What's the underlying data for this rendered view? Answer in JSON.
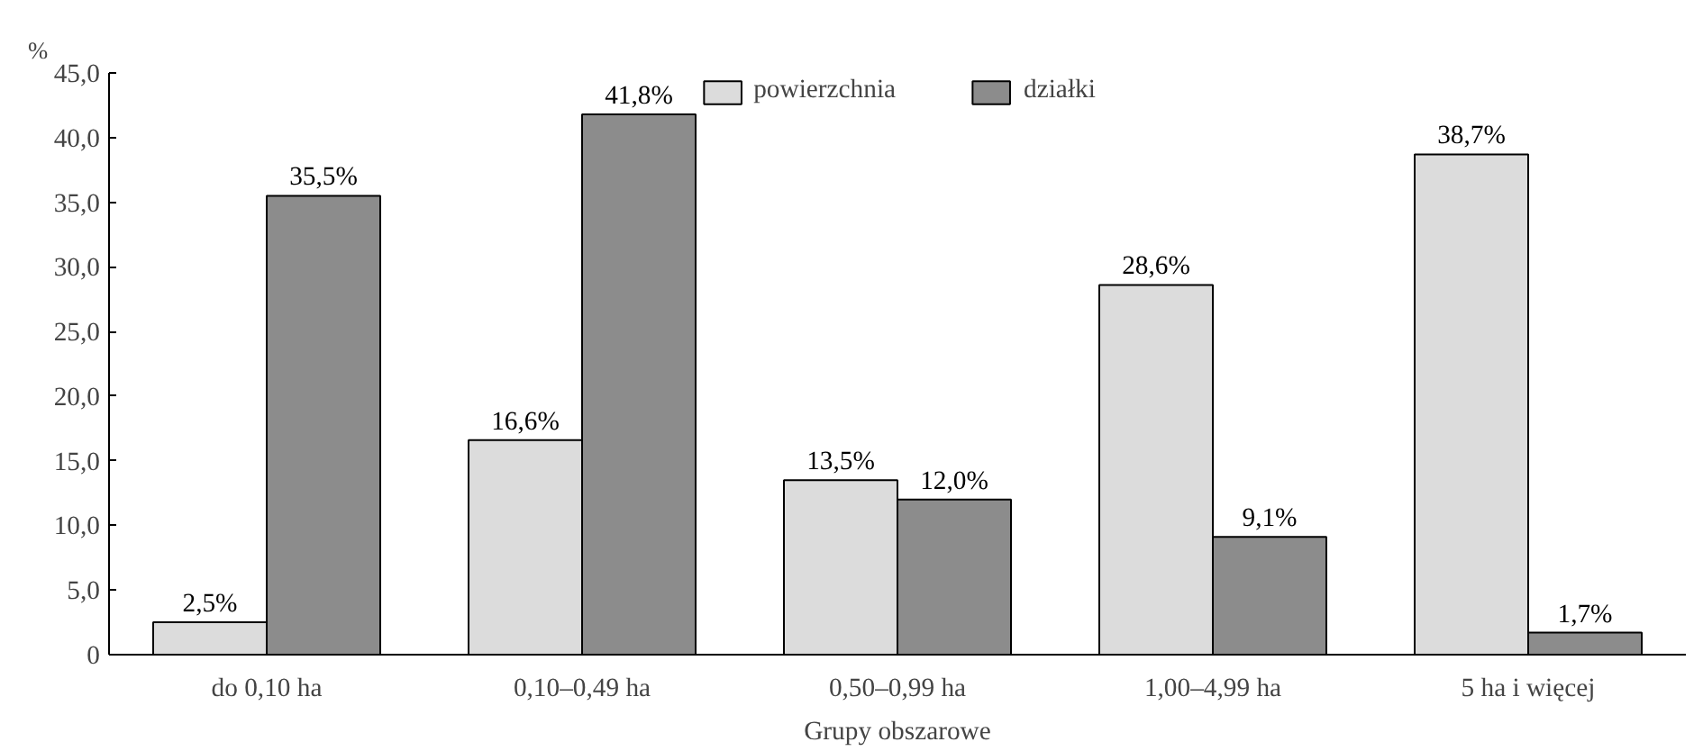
{
  "chart_data": {
    "type": "bar",
    "ylabel": "%",
    "xlabel": "Grupy obszarowe",
    "categories": [
      "do 0,10 ha",
      "0,10–0,49 ha",
      "0,50–0,99 ha",
      "1,00–4,99 ha",
      "5 ha i więcej"
    ],
    "series": [
      {
        "name": "powierzchnia",
        "color": "#dcdcdc",
        "values": [
          2.5,
          16.6,
          13.5,
          28.6,
          38.7
        ],
        "value_labels": [
          "2,5%",
          "16,6%",
          "13,5%",
          "28,6%",
          "38,7%"
        ]
      },
      {
        "name": "działki",
        "color": "#8c8c8c",
        "values": [
          35.5,
          41.8,
          12.0,
          9.1,
          1.7
        ],
        "value_labels": [
          "35,5%",
          "41,8%",
          "12,0%",
          "9,1%",
          "1,7%"
        ]
      }
    ],
    "ylim": [
      0,
      45
    ],
    "yticks": [
      0,
      {
        "value": 5,
        "label": "5,0"
      },
      {
        "value": 10,
        "label": "10,0"
      },
      {
        "value": 15,
        "label": "15,0"
      },
      {
        "value": 20,
        "label": "20,0"
      },
      {
        "value": 25,
        "label": "25,0"
      },
      {
        "value": 30,
        "label": "30,0"
      },
      {
        "value": 35,
        "label": "35,0"
      },
      {
        "value": 40,
        "label": "40,0"
      },
      {
        "value": 45,
        "label": "45,0"
      }
    ],
    "grid": false,
    "legend": "top"
  }
}
